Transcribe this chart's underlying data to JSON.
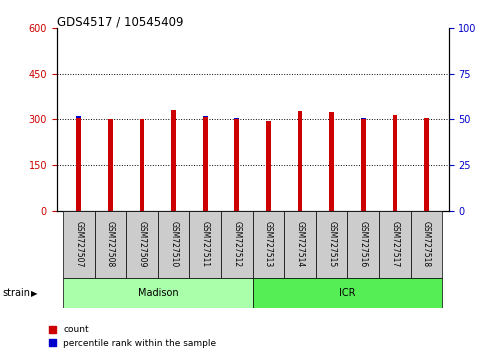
{
  "title": "GDS4517 / 10545409",
  "samples": [
    "GSM727507",
    "GSM727508",
    "GSM727509",
    "GSM727510",
    "GSM727511",
    "GSM727512",
    "GSM727513",
    "GSM727514",
    "GSM727515",
    "GSM727516",
    "GSM727517",
    "GSM727518"
  ],
  "count_values": [
    305,
    303,
    302,
    330,
    308,
    303,
    295,
    328,
    323,
    303,
    315,
    305
  ],
  "percentile_values": [
    52,
    50,
    50,
    53,
    52,
    51,
    49,
    53,
    52,
    51,
    52,
    51
  ],
  "red_color": "#cc0000",
  "blue_color": "#0000cc",
  "left_ylim": [
    0,
    600
  ],
  "right_ylim": [
    0,
    100
  ],
  "left_yticks": [
    0,
    150,
    300,
    450,
    600
  ],
  "right_yticks": [
    0,
    25,
    50,
    75,
    100
  ],
  "grid_yticks": [
    150,
    300,
    450
  ],
  "strain_labels": [
    "Madison",
    "ICR"
  ],
  "madison_color": "#aaffaa",
  "icr_color": "#55ee55",
  "sample_box_color": "#cccccc",
  "legend_count_label": "count",
  "legend_percentile_label": "percentile rank within the sample",
  "strain_text": "strain"
}
